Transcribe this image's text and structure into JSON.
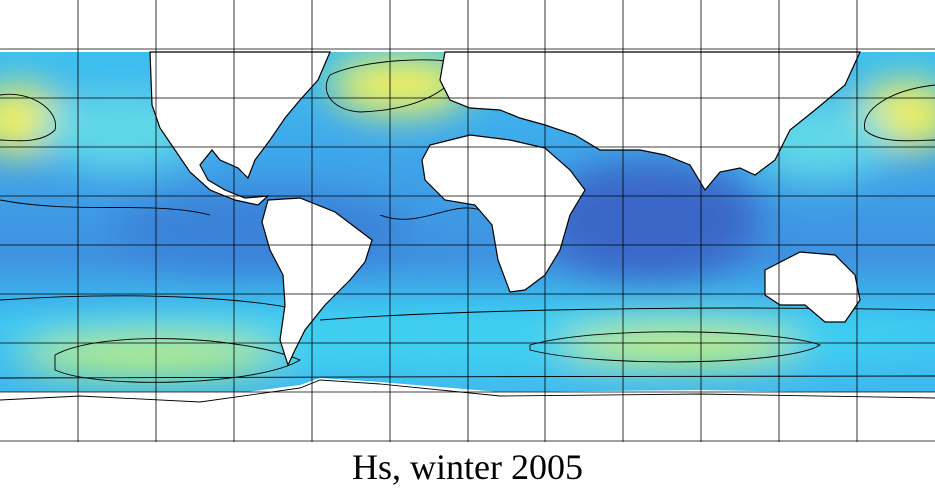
{
  "caption": "Hs, winter 2005"
}
